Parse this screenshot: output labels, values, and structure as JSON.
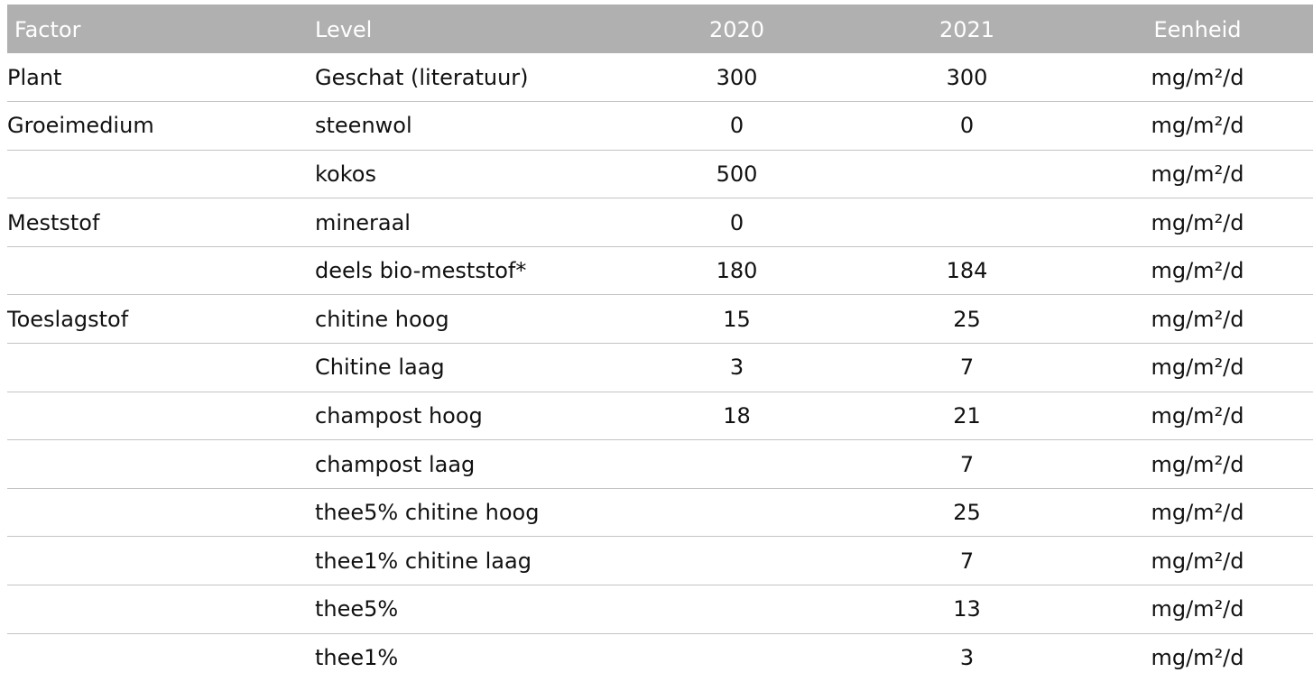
{
  "table": {
    "headers": [
      "Factor",
      "Level",
      "2020",
      "2021",
      "Eenheid"
    ],
    "rows": [
      {
        "factor": "Plant",
        "level": "Geschat (literatuur)",
        "y2020": "300",
        "y2021": "300",
        "unit": "mg/m²/d"
      },
      {
        "factor": "Groeimedium",
        "level": "steenwol",
        "y2020": "0",
        "y2021": "0",
        "unit": "mg/m²/d"
      },
      {
        "factor": "",
        "level": "kokos",
        "y2020": "500",
        "y2021": "",
        "unit": "mg/m²/d"
      },
      {
        "factor": "Meststof",
        "level": "mineraal",
        "y2020": "0",
        "y2021": "",
        "unit": "mg/m²/d"
      },
      {
        "factor": "",
        "level": "deels bio-meststof*",
        "y2020": "180",
        "y2021": "184",
        "unit": "mg/m²/d"
      },
      {
        "factor": "Toeslagstof",
        "level": "chitine hoog",
        "y2020": "15",
        "y2021": "25",
        "unit": "mg/m²/d"
      },
      {
        "factor": "",
        "level": "Chitine laag",
        "y2020": "3",
        "y2021": "7",
        "unit": "mg/m²/d"
      },
      {
        "factor": "",
        "level": "champost hoog",
        "y2020": "18",
        "y2021": "21",
        "unit": "mg/m²/d"
      },
      {
        "factor": "",
        "level": "champost laag",
        "y2020": "",
        "y2021": "7",
        "unit": "mg/m²/d"
      },
      {
        "factor": "",
        "level": "thee5% chitine hoog",
        "y2020": "",
        "y2021": "25",
        "unit": "mg/m²/d"
      },
      {
        "factor": "",
        "level": "thee1% chitine laag",
        "y2020": "",
        "y2021": "7",
        "unit": "mg/m²/d"
      },
      {
        "factor": "",
        "level": "thee5%",
        "y2020": "",
        "y2021": "13",
        "unit": "mg/m²/d"
      },
      {
        "factor": "",
        "level": "thee1%",
        "y2020": "",
        "y2021": "3",
        "unit": "mg/m²/d"
      }
    ]
  },
  "colors": {
    "header_bg": "#b0b0b0",
    "header_text": "#ffffff",
    "row_divider": "#c4c4c4",
    "body_text": "#111111"
  }
}
